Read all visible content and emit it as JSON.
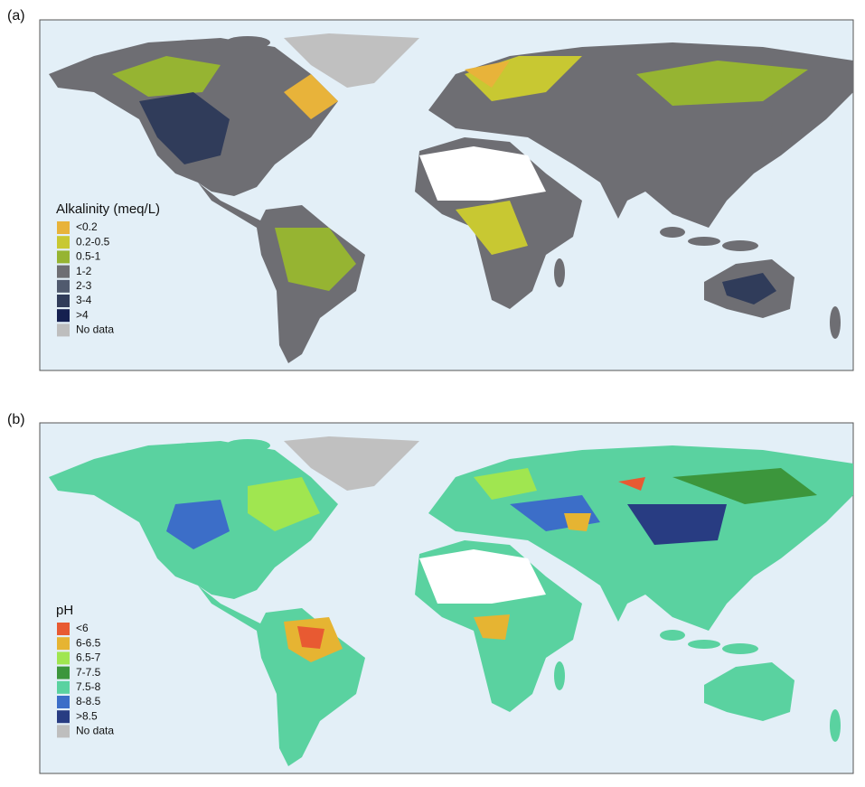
{
  "panels": [
    {
      "label": "(a)",
      "legend": {
        "title": "Alkalinity (meq/L)",
        "items": [
          {
            "label": "<0.2",
            "color": "#e8b33a"
          },
          {
            "label": "0.2-0.5",
            "color": "#c8c832"
          },
          {
            "label": "0.5-1",
            "color": "#96b432"
          },
          {
            "label": "1-2",
            "color": "#6e6e73"
          },
          {
            "label": "2-3",
            "color": "#505a6e"
          },
          {
            "label": "3-4",
            "color": "#303c5a"
          },
          {
            "label": ">4",
            "color": "#152050"
          },
          {
            "label": "No data",
            "color": "#bebebe"
          }
        ]
      }
    },
    {
      "label": "(b)",
      "legend": {
        "title": "pH",
        "items": [
          {
            "label": "<6",
            "color": "#e85a32"
          },
          {
            "label": "6-6.5",
            "color": "#e6b432"
          },
          {
            "label": "6.5-7",
            "color": "#a0e650"
          },
          {
            "label": "7-7.5",
            "color": "#3c963c"
          },
          {
            "label": "7.5-8",
            "color": "#5ad2a0"
          },
          {
            "label": "8-8.5",
            "color": "#3c6ec8"
          },
          {
            "label": ">8.5",
            "color": "#283c82"
          },
          {
            "label": "No data",
            "color": "#bebebe"
          }
        ]
      }
    }
  ]
}
